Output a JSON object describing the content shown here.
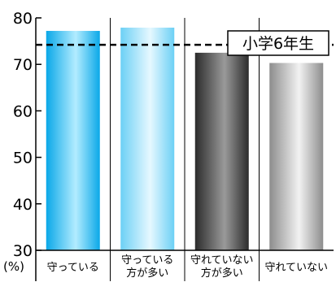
{
  "chart_data": {
    "type": "bar",
    "categories": [
      [
        "守っている"
      ],
      [
        "守っている",
        "方が多い"
      ],
      [
        "守れていない",
        "方が多い"
      ],
      [
        "守れていない"
      ]
    ],
    "values": [
      77.2,
      77.9,
      72.5,
      70.3
    ],
    "ylim": [
      30,
      80
    ],
    "yticks": [
      30,
      40,
      50,
      60,
      70,
      80
    ],
    "ylabel": "(%)",
    "reference_line": {
      "value": 74.2,
      "label": "小学6年生",
      "style": "dashed"
    },
    "bar_styles": [
      "cyan-gradient",
      "lightblue-gradient",
      "dark-gray-gradient",
      "light-gray-gradient"
    ],
    "grid": "vertical-separators"
  },
  "colors": {
    "cyan_dark": "#0aa8e8",
    "cyan_light": "#b3ecff",
    "lightblue_dark": "#6cd0f5",
    "lightblue_light": "#e6f8ff",
    "darkgray_dark": "#2b2b2b",
    "darkgray_light": "#9a9a9a",
    "lightgray_dark": "#8d8d8d",
    "lightgray_light": "#f2f2f2",
    "axis": "#000000"
  }
}
